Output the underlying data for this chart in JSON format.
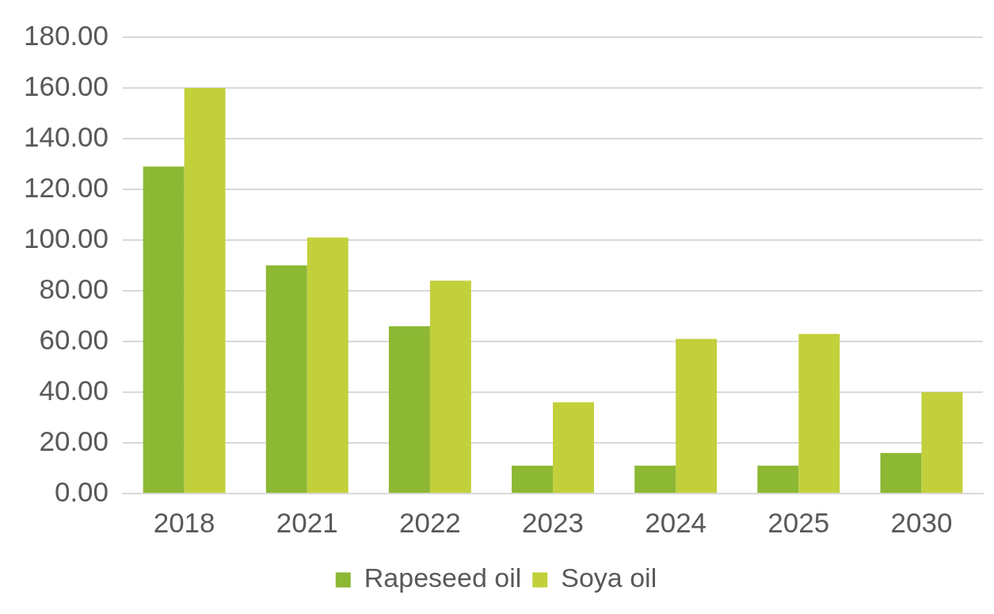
{
  "chart_data": {
    "type": "bar",
    "categories": [
      "2018",
      "2021",
      "2022",
      "2023",
      "2024",
      "2025",
      "2030"
    ],
    "series": [
      {
        "name": "Rapeseed oil",
        "color": "#8cb833",
        "values": [
          129,
          90,
          66,
          11,
          11,
          11,
          16
        ]
      },
      {
        "name": "Soya oil",
        "color": "#c2d03c",
        "values": [
          160,
          101,
          84,
          36,
          61,
          63,
          40
        ]
      }
    ],
    "ylim": [
      0,
      180
    ],
    "yticks": [
      {
        "value": 0,
        "label": "0.00"
      },
      {
        "value": 20,
        "label": "20.00"
      },
      {
        "value": 40,
        "label": "40.00"
      },
      {
        "value": 60,
        "label": "60.00"
      },
      {
        "value": 80,
        "label": "80.00"
      },
      {
        "value": 100,
        "label": "100.00"
      },
      {
        "value": 120,
        "label": "120.00"
      },
      {
        "value": 140,
        "label": "140.00"
      },
      {
        "value": 160,
        "label": "160.00"
      },
      {
        "value": 180,
        "label": "180.00"
      }
    ],
    "grid": "y",
    "legend": "bottom"
  }
}
